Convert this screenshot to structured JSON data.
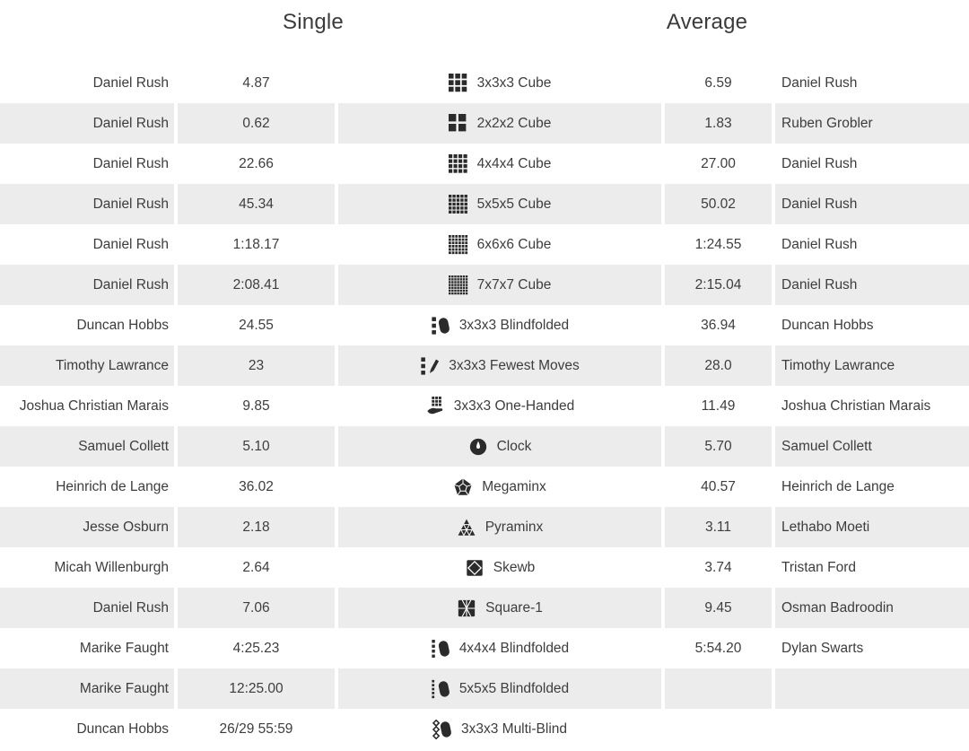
{
  "page": {
    "headers": {
      "single": "Single",
      "average": "Average"
    },
    "colors": {
      "text": "#3d3d3d",
      "row_alt": "#ececec",
      "icon": "#2b2b2b"
    }
  },
  "records": [
    {
      "single_name": "Daniel Rush",
      "single": "4.87",
      "event": "3x3x3 Cube",
      "icon": "cube-3x3x3-icon",
      "average": "6.59",
      "average_name": "Daniel Rush"
    },
    {
      "single_name": "Daniel Rush",
      "single": "0.62",
      "event": "2x2x2 Cube",
      "icon": "cube-2x2x2-icon",
      "average": "1.83",
      "average_name": "Ruben Grobler"
    },
    {
      "single_name": "Daniel Rush",
      "single": "22.66",
      "event": "4x4x4 Cube",
      "icon": "cube-4x4x4-icon",
      "average": "27.00",
      "average_name": "Daniel Rush"
    },
    {
      "single_name": "Daniel Rush",
      "single": "45.34",
      "event": "5x5x5 Cube",
      "icon": "cube-5x5x5-icon",
      "average": "50.02",
      "average_name": "Daniel Rush"
    },
    {
      "single_name": "Daniel Rush",
      "single": "1:18.17",
      "event": "6x6x6 Cube",
      "icon": "cube-6x6x6-icon",
      "average": "1:24.55",
      "average_name": "Daniel Rush"
    },
    {
      "single_name": "Daniel Rush",
      "single": "2:08.41",
      "event": "7x7x7 Cube",
      "icon": "cube-7x7x7-icon",
      "average": "2:15.04",
      "average_name": "Daniel Rush"
    },
    {
      "single_name": "Duncan Hobbs",
      "single": "24.55",
      "event": "3x3x3 Blindfolded",
      "icon": "blindfolded-3-icon",
      "average": "36.94",
      "average_name": "Duncan Hobbs"
    },
    {
      "single_name": "Timothy Lawrance",
      "single": "23",
      "event": "3x3x3 Fewest Moves",
      "icon": "fewest-moves-icon",
      "average": "28.0",
      "average_name": "Timothy Lawrance"
    },
    {
      "single_name": "Joshua Christian Marais",
      "single": "9.85",
      "event": "3x3x3 One-Handed",
      "icon": "one-handed-icon",
      "average": "11.49",
      "average_name": "Joshua Christian Marais"
    },
    {
      "single_name": "Samuel Collett",
      "single": "5.10",
      "event": "Clock",
      "icon": "clock-icon",
      "average": "5.70",
      "average_name": "Samuel Collett"
    },
    {
      "single_name": "Heinrich de Lange",
      "single": "36.02",
      "event": "Megaminx",
      "icon": "megaminx-icon",
      "average": "40.57",
      "average_name": "Heinrich de Lange"
    },
    {
      "single_name": "Jesse Osburn",
      "single": "2.18",
      "event": "Pyraminx",
      "icon": "pyraminx-icon",
      "average": "3.11",
      "average_name": "Lethabo Moeti"
    },
    {
      "single_name": "Micah Willenburgh",
      "single": "2.64",
      "event": "Skewb",
      "icon": "skewb-icon",
      "average": "3.74",
      "average_name": "Tristan Ford"
    },
    {
      "single_name": "Daniel Rush",
      "single": "7.06",
      "event": "Square-1",
      "icon": "square-1-icon",
      "average": "9.45",
      "average_name": "Osman Badroodin"
    },
    {
      "single_name": "Marike Faught",
      "single": "4:25.23",
      "event": "4x4x4 Blindfolded",
      "icon": "blindfolded-4-icon",
      "average": "5:54.20",
      "average_name": "Dylan Swarts"
    },
    {
      "single_name": "Marike Faught",
      "single": "12:25.00",
      "event": "5x5x5 Blindfolded",
      "icon": "blindfolded-5-icon",
      "average": "",
      "average_name": ""
    },
    {
      "single_name": "Duncan Hobbs",
      "single": "26/29 55:59",
      "event": "3x3x3 Multi-Blind",
      "icon": "multi-blind-icon",
      "average": "",
      "average_name": ""
    }
  ]
}
